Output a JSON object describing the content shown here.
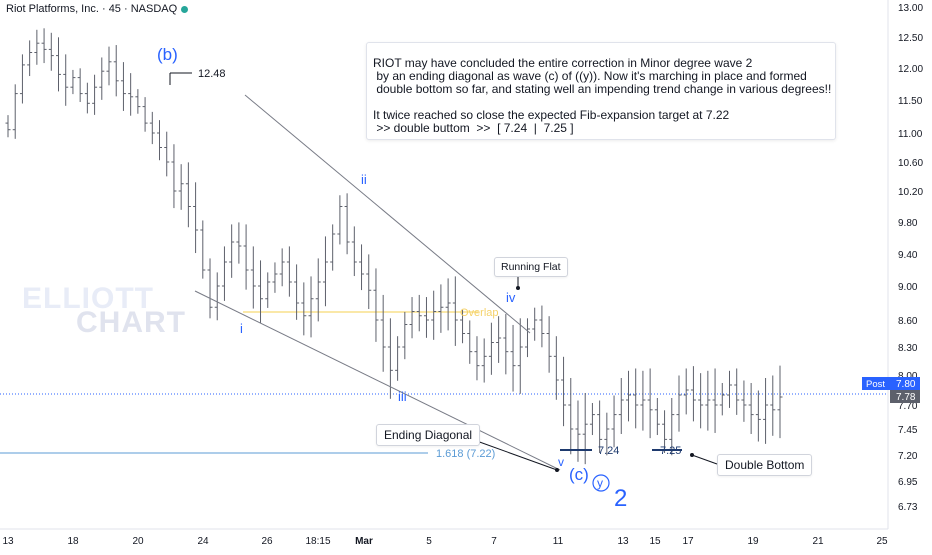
{
  "header": {
    "symbol_title": "Riot Platforms, Inc. · 45 · NASDAQ"
  },
  "watermark": {
    "line1": "ELLIOTT",
    "line2": "CHART"
  },
  "note": {
    "text": "RIOT may have concluded the entire correction in Minor degree wave 2\n by an ending diagonal as wave (c) of ((y)). Now it's marching in place and formed\n double bottom so far, and stating well an impending trend change in various degrees!!\n\nIt twice reached so close the expected Fib-expansion target at 7.22\n >> double buttom  >>  [ 7.24  |  7.25 ]"
  },
  "callouts": {
    "running_flat": "Running Flat",
    "ending_diagonal": "Ending Diagonal",
    "double_bottom": "Double Bottom"
  },
  "wave_labels": {
    "b": "(b)",
    "i": "i",
    "ii": "ii",
    "iii": "iii",
    "iv": "iv",
    "v": "v",
    "c": "(c)",
    "y": "y",
    "two": "2"
  },
  "levels": {
    "high_label": "12.48",
    "low1_label": "7.24",
    "low2_label": "7.25",
    "fib_label": "1.618 (7.22)",
    "overlap_label": "Overlap"
  },
  "price_axis": {
    "post_label": "Post",
    "post_price": "7.80",
    "last_price": "7.78"
  },
  "colors": {
    "wave_blue": "#2962ff",
    "fib_line": "#5b9bd5",
    "overlap_line": "#f9e08b",
    "post_tag": "#2962ff",
    "candle": "#5d606b",
    "trendline": "#787b86"
  },
  "chart_data": {
    "type": "candlestick",
    "title": "Riot Platforms, Inc. · 45 · NASDAQ",
    "interval": "45",
    "exchange": "NASDAQ",
    "ylim": [
      6.58,
      13.15
    ],
    "y_ticks": [
      13.0,
      12.5,
      12.0,
      11.5,
      11.0,
      10.6,
      10.2,
      9.8,
      9.4,
      9.0,
      8.6,
      8.3,
      8.0,
      7.7,
      7.45,
      7.2,
      6.95,
      6.73
    ],
    "x_ticks": [
      "13",
      "18",
      "20",
      "24",
      "26",
      "18:15",
      "Mar",
      "5",
      "7",
      "11",
      "13",
      "15",
      "17",
      "19",
      "21",
      "25"
    ],
    "grid": false,
    "closes": [
      11.05,
      11.6,
      12.05,
      12.25,
      12.4,
      12.3,
      12.2,
      11.9,
      11.7,
      11.85,
      11.6,
      11.45,
      11.7,
      11.95,
      12.1,
      11.8,
      11.6,
      11.55,
      11.4,
      11.15,
      11.0,
      10.8,
      10.6,
      10.2,
      10.3,
      10.0,
      9.7,
      9.2,
      8.75,
      9.0,
      9.3,
      9.55,
      9.5,
      9.2,
      9.0,
      8.85,
      9.05,
      9.15,
      9.3,
      9.05,
      8.8,
      8.65,
      8.85,
      9.05,
      9.3,
      9.65,
      10.0,
      9.55,
      9.3,
      9.15,
      8.95,
      8.6,
      8.3,
      8.05,
      8.3,
      8.55,
      8.7,
      8.65,
      8.6,
      8.7,
      8.75,
      8.8,
      8.6,
      8.45,
      8.25,
      8.1,
      8.2,
      8.35,
      8.4,
      8.25,
      8.1,
      8.3,
      8.5,
      8.6,
      8.45,
      8.2,
      7.95,
      7.7,
      7.45,
      7.4,
      7.5,
      7.6,
      7.35,
      7.45,
      7.6,
      7.75,
      7.8,
      7.7,
      7.75,
      7.65,
      7.5,
      7.35,
      7.6,
      7.8,
      7.85,
      7.75,
      7.7,
      7.75,
      7.7,
      7.8,
      7.9,
      7.75,
      7.7,
      7.6,
      7.55,
      7.7,
      7.65,
      7.78
    ],
    "annotations": [
      {
        "text": "12.48",
        "price": 12.48
      },
      {
        "text": "7.24",
        "price": 7.24
      },
      {
        "text": "7.25",
        "price": 7.25
      },
      {
        "text": "1.618 (7.22)",
        "price": 7.22
      },
      {
        "text": "Overlap",
        "price": 8.68
      }
    ],
    "last_price": 7.78,
    "post_price": 7.8
  }
}
